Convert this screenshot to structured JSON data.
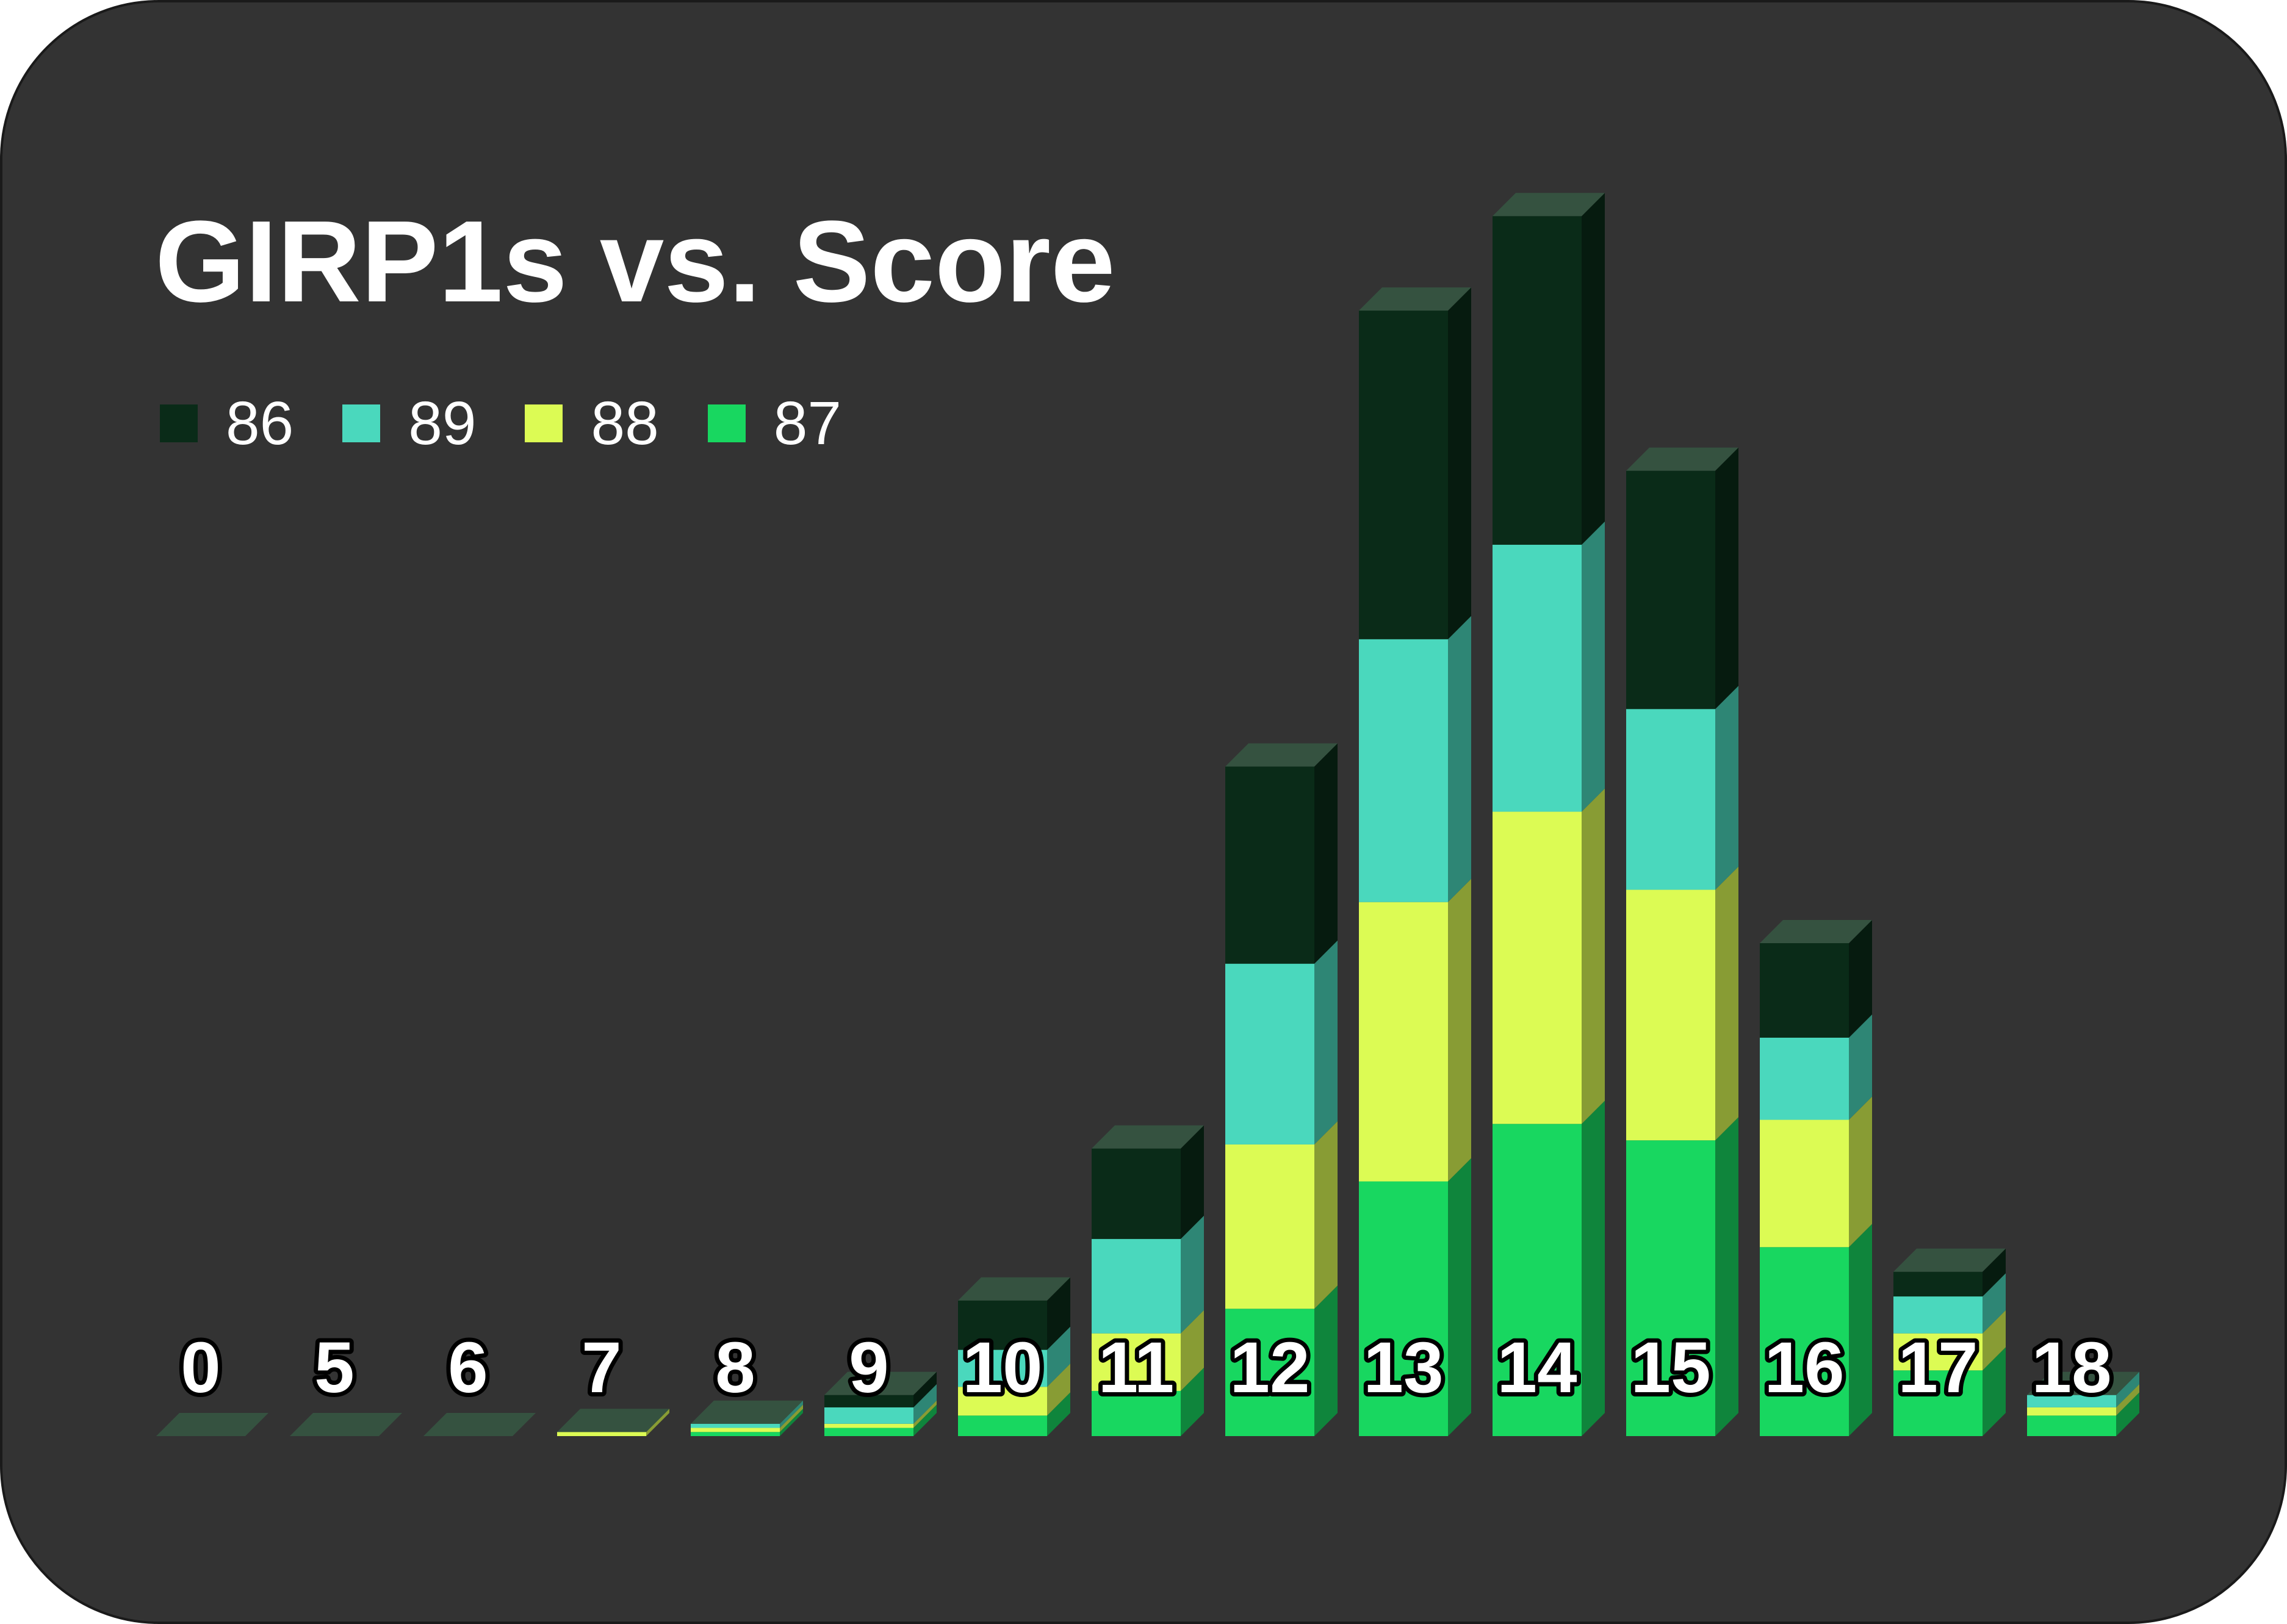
{
  "chart_data": {
    "type": "bar",
    "stacked": true,
    "style": "3d",
    "title": "GIRP1s vs. Score",
    "legend_position": "top-left",
    "grid": false,
    "categories": [
      "0",
      "5",
      "6",
      "7",
      "8",
      "9",
      "10",
      "11",
      "12",
      "13",
      "14",
      "15",
      "16",
      "17",
      "18"
    ],
    "series": [
      {
        "name": "87",
        "color": "#18d760",
        "values": [
          0,
          0,
          0,
          0,
          0.1,
          0.2,
          0.5,
          1.1,
          3.1,
          6.2,
          7.6,
          7.2,
          4.6,
          1.6,
          0.5
        ]
      },
      {
        "name": "88",
        "color": "#dcfb54",
        "values": [
          0,
          0,
          0,
          0.1,
          0.1,
          0.1,
          0.7,
          1.4,
          4.0,
          6.8,
          7.6,
          6.1,
          3.1,
          0.9,
          0.2
        ]
      },
      {
        "name": "89",
        "color": "#4ad8bd",
        "values": [
          0,
          0,
          0,
          0,
          0.1,
          0.4,
          0.9,
          2.3,
          4.4,
          6.4,
          6.5,
          4.4,
          2.0,
          0.9,
          0.3
        ]
      },
      {
        "name": "86",
        "color": "#0a2b18",
        "values": [
          0,
          0,
          0,
          0,
          0,
          0.3,
          1.2,
          2.2,
          4.8,
          8.0,
          8.0,
          5.8,
          2.3,
          0.6,
          0
        ]
      }
    ],
    "legend_order": [
      "86",
      "89",
      "88",
      "87"
    ],
    "ylim": [
      0,
      30
    ]
  }
}
